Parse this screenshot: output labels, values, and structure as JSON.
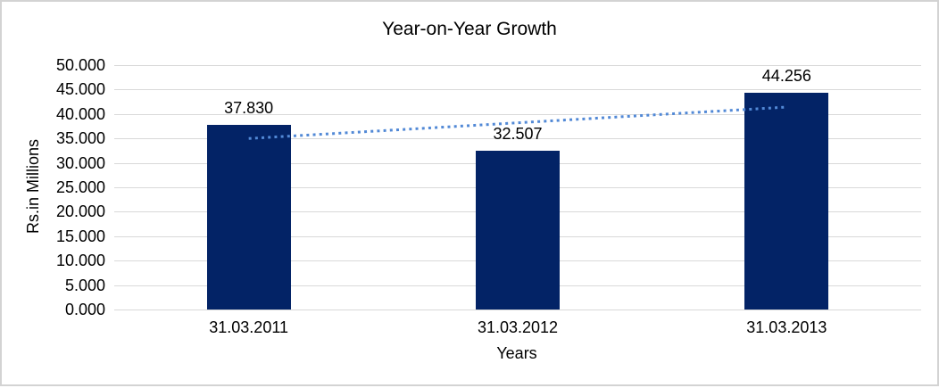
{
  "chart_data": {
    "type": "bar",
    "title": "Year-on-Year Growth",
    "xlabel": "Years",
    "ylabel": "Rs.in Millions",
    "categories": [
      "31.03.2011",
      "31.03.2012",
      "31.03.2013"
    ],
    "series": [
      {
        "values": [
          37830,
          32507,
          44256
        ],
        "value_labels": [
          "37.830",
          "32.507",
          "44.256"
        ]
      }
    ],
    "ylim": [
      0,
      50000
    ],
    "yticks": [
      {
        "value": 0,
        "label": "0.000"
      },
      {
        "value": 5000,
        "label": "5.000"
      },
      {
        "value": 10000,
        "label": "10.000"
      },
      {
        "value": 15000,
        "label": "15.000"
      },
      {
        "value": 20000,
        "label": "20.000"
      },
      {
        "value": 25000,
        "label": "25.000"
      },
      {
        "value": 30000,
        "label": "30.000"
      },
      {
        "value": 35000,
        "label": "35.000"
      },
      {
        "value": 40000,
        "label": "40.000"
      },
      {
        "value": 45000,
        "label": "45.000"
      },
      {
        "value": 50000,
        "label": "50.000"
      }
    ],
    "grid": true,
    "legend_position": "none",
    "trendline": {
      "type": "linear",
      "style": "dotted",
      "start_value": 34985,
      "end_value": 41411
    },
    "colors": {
      "bar": "#032366",
      "trendline": "#5289d6",
      "gridline": "#d9d9d9",
      "text": "#000000",
      "frame_border": "#d3d3d3",
      "background": "#ffffff"
    }
  }
}
